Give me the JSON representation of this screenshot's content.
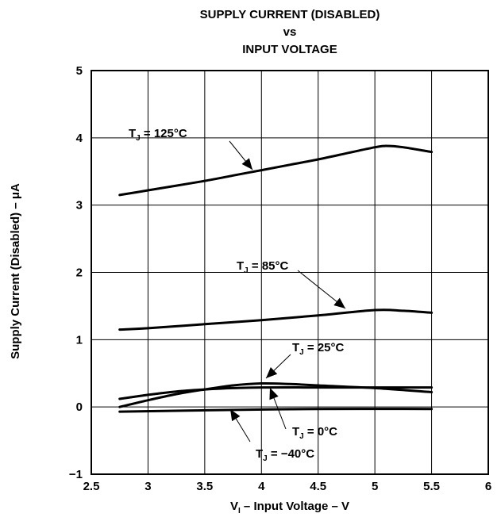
{
  "chart_data": {
    "type": "line",
    "title_lines": [
      "SUPPLY CURRENT (DISABLED)",
      "vs",
      "INPUT VOLTAGE"
    ],
    "xlabel": {
      "pre": "V",
      "sub": "I",
      "post": " – Input Voltage – V"
    },
    "ylabel": "Supply Current (Disabled) –  μA",
    "xlim": [
      2.5,
      6
    ],
    "ylim": [
      -1,
      5
    ],
    "xticks": [
      2.5,
      3,
      3.5,
      4,
      4.5,
      5,
      5.5,
      6
    ],
    "yticks": [
      -1,
      0,
      1,
      2,
      3,
      4,
      5
    ],
    "xtick_labels": [
      "2.5",
      "3",
      "3.5",
      "4",
      "4.5",
      "5",
      "5.5",
      "6"
    ],
    "ytick_labels": [
      "−1",
      "0",
      "1",
      "2",
      "3",
      "4",
      "5"
    ],
    "grid": true,
    "series": [
      {
        "name": "T_J = 125°C",
        "x": [
          2.75,
          3.0,
          3.25,
          3.5,
          3.75,
          4.0,
          4.25,
          4.5,
          4.75,
          5.0,
          5.1,
          5.25,
          5.5
        ],
        "y": [
          3.15,
          3.22,
          3.29,
          3.36,
          3.44,
          3.52,
          3.6,
          3.68,
          3.77,
          3.86,
          3.88,
          3.86,
          3.79
        ]
      },
      {
        "name": "T_J = 85°C",
        "x": [
          2.75,
          3.0,
          3.5,
          4.0,
          4.5,
          5.0,
          5.25,
          5.5
        ],
        "y": [
          1.15,
          1.17,
          1.23,
          1.29,
          1.36,
          1.44,
          1.43,
          1.4
        ]
      },
      {
        "name": "T_J = 25°C",
        "x": [
          2.75,
          3.0,
          3.25,
          3.5,
          3.75,
          4.0,
          4.25,
          4.5,
          5.0,
          5.5
        ],
        "y": [
          0.0,
          0.1,
          0.19,
          0.26,
          0.32,
          0.35,
          0.34,
          0.32,
          0.28,
          0.22
        ]
      },
      {
        "name": "T_J = 0°C",
        "x": [
          2.75,
          3.0,
          3.25,
          3.5,
          3.75,
          4.0,
          4.5,
          5.0,
          5.5
        ],
        "y": [
          0.12,
          0.18,
          0.23,
          0.26,
          0.28,
          0.29,
          0.29,
          0.29,
          0.29
        ]
      },
      {
        "name": "T_J = −40°C",
        "x": [
          2.75,
          3.5,
          4.5,
          5.5
        ],
        "y": [
          -0.07,
          -0.05,
          -0.03,
          -0.03
        ]
      }
    ],
    "annotations": [
      {
        "pre": "T",
        "sub": "J",
        "post": " = 125°C"
      },
      {
        "pre": "T",
        "sub": "J",
        "post": " = 85°C"
      },
      {
        "pre": "T",
        "sub": "J",
        "post": " = 25°C"
      },
      {
        "pre": "T",
        "sub": "J",
        "post": " = 0°C"
      },
      {
        "pre": "T",
        "sub": "J",
        "post": " = −40°C"
      }
    ],
    "line_color": "#000000"
  }
}
